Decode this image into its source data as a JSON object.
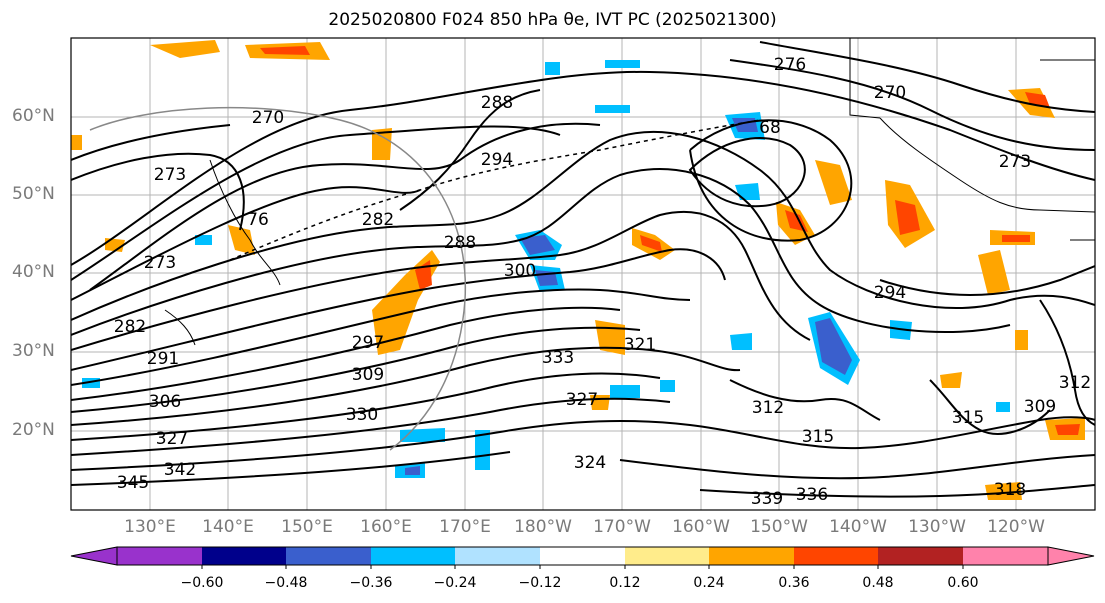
{
  "title": "2025020800 F024 850 hPa θe, IVT PC (2025021300)",
  "lat_labels": [
    "60°N",
    "50°N",
    "40°N",
    "30°N",
    "20°N"
  ],
  "lon_labels": [
    "130°E",
    "140°E",
    "150°E",
    "160°E",
    "170°E",
    "180°W",
    "170°W",
    "160°W",
    "150°W",
    "140°W",
    "130°W",
    "120°W"
  ],
  "contour_labels": [
    "270",
    "276",
    "270",
    "273",
    "273",
    "76",
    "294",
    "282",
    "288",
    "300",
    "297",
    "309",
    "291",
    "306",
    "327",
    "330",
    "333",
    "327",
    "321",
    "312",
    "315",
    "294",
    "315",
    "309",
    "312",
    "324",
    "336",
    "339",
    "345",
    "342",
    "288",
    "273",
    "68",
    "282",
    "318"
  ],
  "colorbar": {
    "ticks": [
      "−0.60",
      "−0.48",
      "−0.36",
      "−0.24",
      "−0.12",
      "0.12",
      "0.24",
      "0.36",
      "0.48",
      "0.60"
    ],
    "colors": [
      "#9932cc",
      "#00008b",
      "#3a5fcd",
      "#00bfff",
      "#b0e2ff",
      "#ffffff",
      "#ffec8b",
      "#ffa500",
      "#ff4500",
      "#b22222",
      "#ff82ab"
    ]
  }
}
